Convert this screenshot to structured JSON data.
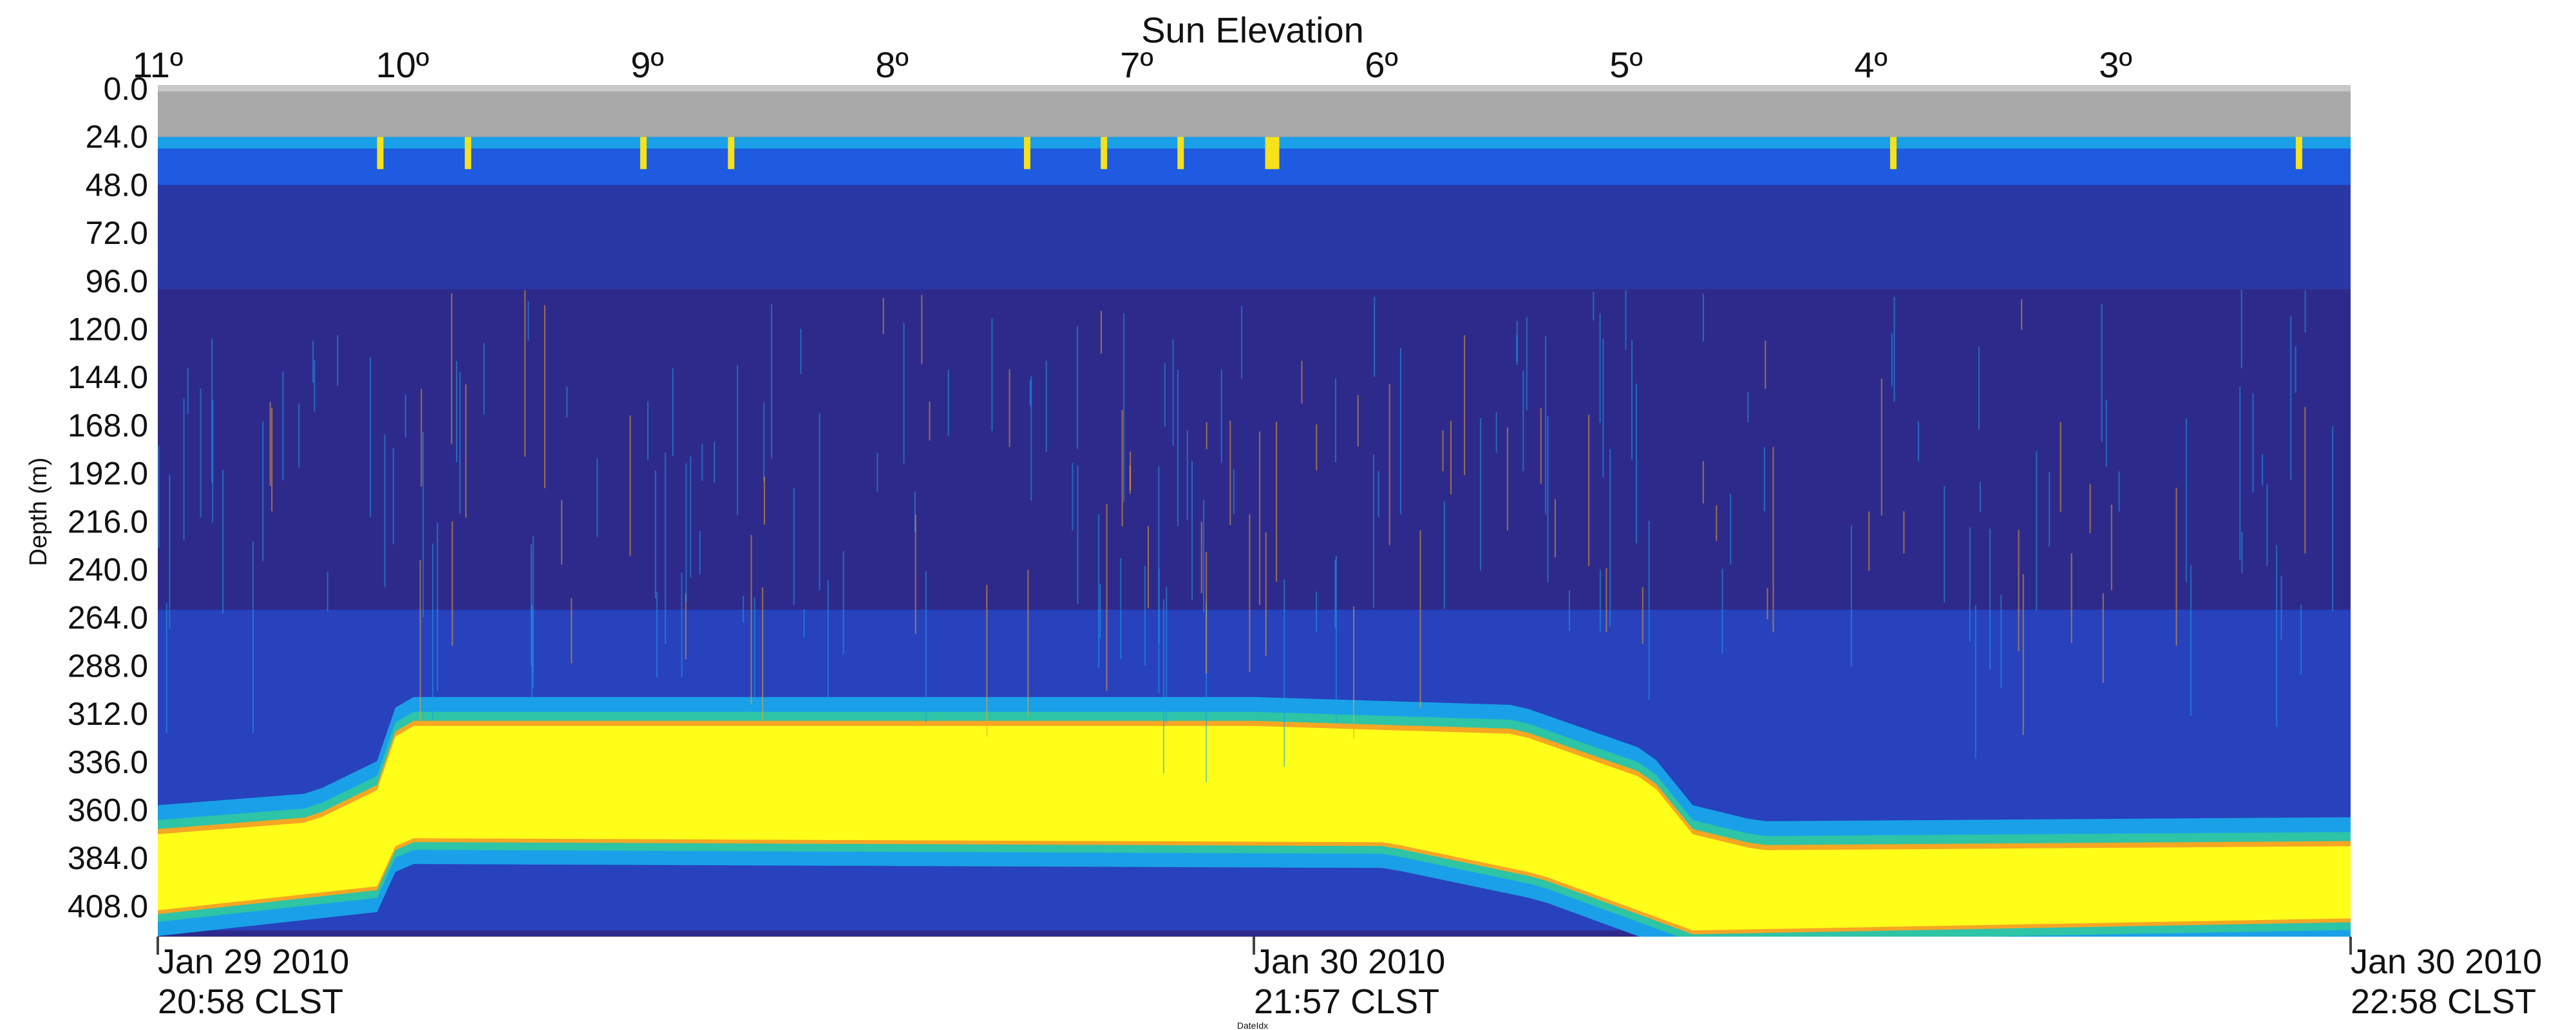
{
  "chart_data": {
    "type": "heatmap",
    "title": "",
    "top_axis_label": "Sun Elevation",
    "top_tick_labels": [
      "11º",
      "10º",
      "9º",
      "8º",
      "7º",
      "6º",
      "5º",
      "4º",
      "3º"
    ],
    "ylabel": "Depth (m)",
    "ylim": [
      0,
      420
    ],
    "y_tick_labels": [
      "0.0",
      "24.0",
      "48.0",
      "72.0",
      "96.0",
      "120.0",
      "144.0",
      "168.0",
      "192.0",
      "216.0",
      "240.0",
      "264.0",
      "288.0",
      "312.0",
      "336.0",
      "360.0",
      "384.0",
      "408.0"
    ],
    "xlabel": "DateIdx",
    "x_tick_labels": [
      {
        "date": "Jan 29 2010",
        "time": "20:58 CLST"
      },
      {
        "date": "Jan 30 2010",
        "time": "21:57 CLST"
      },
      {
        "date": "Jan 30 2010",
        "time": "22:58 CLST"
      }
    ],
    "colormap": [
      "#2e2a8c",
      "#1f5be0",
      "#1aa0e8",
      "#2ec4a6",
      "#f5a623",
      "#f7e11a",
      "#ffff1a"
    ],
    "no_data_color": "#a9a9a9",
    "scattering_layer": {
      "description_units": "depth in m vs. fraction of time axis",
      "top_depth": [
        [
          0.0,
          372
        ],
        [
          0.07,
          366
        ],
        [
          0.1,
          350
        ],
        [
          0.11,
          318
        ],
        [
          0.5,
          318
        ],
        [
          0.62,
          322
        ],
        [
          0.68,
          345
        ],
        [
          0.7,
          372
        ],
        [
          0.73,
          380
        ],
        [
          1.0,
          378
        ]
      ],
      "bottom_depth": [
        [
          0.0,
          410
        ],
        [
          0.1,
          398
        ],
        [
          0.11,
          374
        ],
        [
          0.56,
          376
        ],
        [
          0.63,
          392
        ],
        [
          0.68,
          412
        ],
        [
          0.7,
          420
        ],
        [
          1.0,
          414
        ]
      ]
    }
  }
}
